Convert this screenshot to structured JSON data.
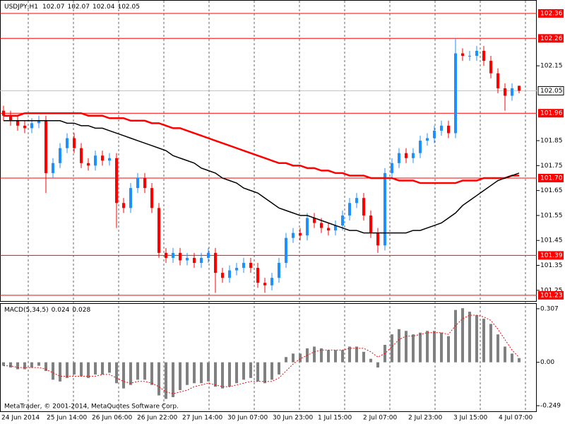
{
  "chart_data": [
    {
      "type": "candlestick",
      "symbol": "USDJPY,H1",
      "watermark": "MetaTrader, © 2001-2014, MetaQuotes Software Corp.",
      "up_color": "#1e90ff",
      "down_color": "#ff0000",
      "open": [
        101.97,
        101.95,
        101.93,
        101.91,
        101.9,
        101.92,
        101.93,
        101.72,
        101.76,
        101.82,
        101.86,
        101.82,
        101.76,
        101.75,
        101.79,
        101.77,
        101.78,
        101.6,
        101.58,
        101.66,
        101.7,
        101.66,
        101.58,
        101.4,
        101.38,
        101.4,
        101.37,
        101.38,
        101.36,
        101.38,
        101.4,
        101.32,
        101.3,
        101.33,
        101.34,
        101.36,
        101.34,
        101.28,
        101.27,
        101.3,
        101.36,
        101.46,
        101.48,
        101.47,
        101.54,
        101.52,
        101.5,
        101.49,
        101.51,
        101.55,
        101.6,
        101.62,
        101.55,
        101.48,
        101.43,
        101.72,
        101.76,
        101.8,
        101.78,
        101.8,
        101.85,
        101.86,
        101.89,
        101.91,
        101.88,
        102.2,
        102.19,
        102.19,
        102.21,
        102.17,
        102.12,
        102.06,
        102.03,
        102.07
      ],
      "high": [
        101.99,
        101.97,
        101.95,
        101.93,
        101.94,
        101.95,
        101.95,
        101.78,
        101.84,
        101.88,
        101.88,
        101.84,
        101.78,
        101.81,
        101.81,
        101.8,
        101.8,
        101.62,
        101.68,
        101.72,
        101.72,
        101.68,
        101.6,
        101.42,
        101.42,
        101.42,
        101.4,
        101.4,
        101.4,
        101.42,
        101.42,
        101.34,
        101.35,
        101.36,
        101.38,
        101.38,
        101.36,
        101.3,
        101.32,
        101.38,
        101.48,
        101.5,
        101.5,
        101.56,
        101.56,
        101.54,
        101.52,
        101.53,
        101.57,
        101.62,
        101.64,
        101.64,
        101.57,
        101.5,
        101.74,
        101.78,
        101.82,
        101.82,
        101.82,
        101.87,
        101.88,
        101.91,
        101.93,
        101.93,
        102.26,
        102.22,
        102.21,
        102.23,
        102.23,
        102.19,
        102.14,
        102.08,
        102.08,
        102.07
      ],
      "low": [
        101.93,
        101.91,
        101.89,
        101.88,
        101.88,
        101.9,
        101.64,
        101.7,
        101.74,
        101.8,
        101.8,
        101.74,
        101.73,
        101.73,
        101.75,
        101.75,
        101.5,
        101.56,
        101.56,
        101.64,
        101.64,
        101.56,
        101.38,
        101.36,
        101.36,
        101.35,
        101.35,
        101.34,
        101.34,
        101.36,
        101.24,
        101.28,
        101.28,
        101.31,
        101.32,
        101.32,
        101.26,
        101.24,
        101.25,
        101.28,
        101.34,
        101.44,
        101.45,
        101.45,
        101.5,
        101.48,
        101.47,
        101.47,
        101.49,
        101.53,
        101.58,
        101.53,
        101.46,
        101.4,
        101.41,
        101.7,
        101.74,
        101.76,
        101.76,
        101.78,
        101.83,
        101.84,
        101.87,
        101.86,
        101.86,
        102.17,
        102.17,
        102.17,
        102.15,
        102.1,
        102.04,
        101.97,
        102.01,
        102.04
      ],
      "close": [
        101.95,
        101.93,
        101.91,
        101.9,
        101.92,
        101.93,
        101.72,
        101.76,
        101.82,
        101.86,
        101.82,
        101.76,
        101.75,
        101.79,
        101.77,
        101.78,
        101.6,
        101.58,
        101.66,
        101.7,
        101.66,
        101.58,
        101.4,
        101.38,
        101.4,
        101.37,
        101.38,
        101.36,
        101.38,
        101.4,
        101.32,
        101.3,
        101.33,
        101.34,
        101.36,
        101.34,
        101.28,
        101.27,
        101.3,
        101.36,
        101.46,
        101.48,
        101.47,
        101.54,
        101.52,
        101.5,
        101.49,
        101.51,
        101.55,
        101.6,
        101.62,
        101.55,
        101.48,
        101.43,
        101.72,
        101.76,
        101.8,
        101.78,
        101.8,
        101.85,
        101.86,
        101.89,
        101.91,
        101.88,
        102.2,
        102.19,
        102.19,
        102.21,
        102.17,
        102.12,
        102.06,
        102.03,
        102.06,
        102.05
      ],
      "series": [
        {
          "color": "#ff0000",
          "values": [
            101.95,
            101.95,
            101.95,
            101.96,
            101.96,
            101.96,
            101.96,
            101.96,
            101.96,
            101.96,
            101.96,
            101.96,
            101.95,
            101.95,
            101.95,
            101.94,
            101.94,
            101.94,
            101.93,
            101.93,
            101.93,
            101.92,
            101.92,
            101.91,
            101.9,
            101.9,
            101.89,
            101.88,
            101.87,
            101.86,
            101.85,
            101.84,
            101.83,
            101.82,
            101.81,
            101.8,
            101.79,
            101.78,
            101.77,
            101.76,
            101.76,
            101.75,
            101.75,
            101.74,
            101.74,
            101.73,
            101.73,
            101.72,
            101.72,
            101.71,
            101.71,
            101.71,
            101.7,
            101.7,
            101.7,
            101.7,
            101.69,
            101.69,
            101.69,
            101.68,
            101.68,
            101.68,
            101.68,
            101.68,
            101.68,
            101.69,
            101.69,
            101.69,
            101.7,
            101.7,
            101.7,
            101.7,
            101.71,
            101.71
          ]
        },
        {
          "color": "#000000",
          "values": [
            101.93,
            101.93,
            101.93,
            101.93,
            101.93,
            101.93,
            101.93,
            101.93,
            101.93,
            101.92,
            101.92,
            101.91,
            101.91,
            101.9,
            101.9,
            101.89,
            101.88,
            101.87,
            101.86,
            101.85,
            101.84,
            101.83,
            101.82,
            101.81,
            101.79,
            101.78,
            101.77,
            101.76,
            101.74,
            101.73,
            101.72,
            101.7,
            101.69,
            101.68,
            101.66,
            101.65,
            101.64,
            101.62,
            101.6,
            101.58,
            101.57,
            101.56,
            101.55,
            101.55,
            101.54,
            101.53,
            101.52,
            101.51,
            101.5,
            101.49,
            101.49,
            101.48,
            101.48,
            101.48,
            101.48,
            101.48,
            101.48,
            101.48,
            101.49,
            101.49,
            101.5,
            101.51,
            101.52,
            101.54,
            101.56,
            101.59,
            101.61,
            101.63,
            101.65,
            101.67,
            101.69,
            101.7,
            101.71,
            101.72
          ]
        }
      ],
      "levels": [
        102.36,
        102.26,
        101.96,
        {
          "value": 101.7,
          "label": "101.70"
        },
        101.39,
        101.23
      ],
      "level_color": "#ff0000",
      "ylim": [
        101.207,
        102.411
      ],
      "yticks": [
        102.15,
        101.85,
        101.75,
        101.65,
        101.55,
        101.45,
        101.35,
        101.25
      ],
      "x_labels": [
        "24 Jun 2014",
        "25 Jun 14:00",
        "26 Jun 06:00",
        "26 Jun 22:00",
        "27 Jun 14:00",
        "30 Jun 07:00",
        "30 Jun 23:00",
        "1 Jul 15:00",
        "2 Jul 07:00",
        "2 Jul 23:00",
        "3 Jul 15:00",
        "4 Jul 07:00"
      ]
    },
    {
      "type": "macd",
      "title": "MACD(5,34,5)",
      "bar_color": "#808080",
      "signal_color": "#ff0000",
      "values": [
        -0.02,
        -0.03,
        -0.04,
        -0.04,
        -0.03,
        -0.02,
        -0.05,
        -0.1,
        -0.11,
        -0.09,
        -0.07,
        -0.08,
        -0.09,
        -0.07,
        -0.07,
        -0.06,
        -0.12,
        -0.15,
        -0.13,
        -0.1,
        -0.1,
        -0.13,
        -0.19,
        -0.21,
        -0.2,
        -0.16,
        -0.13,
        -0.12,
        -0.12,
        -0.11,
        -0.14,
        -0.15,
        -0.14,
        -0.12,
        -0.1,
        -0.09,
        -0.11,
        -0.12,
        -0.1,
        -0.07,
        0.03,
        0.05,
        0.05,
        0.08,
        0.09,
        0.08,
        0.07,
        0.07,
        0.07,
        0.09,
        0.09,
        0.06,
        0.02,
        -0.03,
        0.1,
        0.16,
        0.19,
        0.18,
        0.16,
        0.17,
        0.18,
        0.18,
        0.17,
        0.15,
        0.3,
        0.31,
        0.29,
        0.27,
        0.25,
        0.22,
        0.16,
        0.09,
        0.05,
        0.024
      ],
      "signal": [
        -0.02,
        -0.02,
        -0.03,
        -0.03,
        -0.03,
        -0.03,
        -0.04,
        -0.06,
        -0.08,
        -0.08,
        -0.08,
        -0.08,
        -0.08,
        -0.08,
        -0.07,
        -0.07,
        -0.09,
        -0.11,
        -0.12,
        -0.11,
        -0.11,
        -0.12,
        -0.14,
        -0.17,
        -0.18,
        -0.17,
        -0.16,
        -0.14,
        -0.13,
        -0.12,
        -0.13,
        -0.14,
        -0.14,
        -0.13,
        -0.12,
        -0.11,
        -0.11,
        -0.11,
        -0.11,
        -0.09,
        -0.05,
        -0.01,
        0.02,
        0.04,
        0.06,
        0.07,
        0.07,
        0.07,
        0.07,
        0.08,
        0.08,
        0.08,
        0.06,
        0.03,
        0.05,
        0.09,
        0.13,
        0.15,
        0.15,
        0.16,
        0.17,
        0.17,
        0.17,
        0.16,
        0.21,
        0.25,
        0.27,
        0.27,
        0.26,
        0.24,
        0.19,
        0.13,
        0.07,
        0.028
      ],
      "ylim": [
        -0.281,
        0.335
      ],
      "yticks": [
        0.307,
        {
          "value": 0,
          "label": "0.00"
        },
        -0.249
      ]
    }
  ]
}
